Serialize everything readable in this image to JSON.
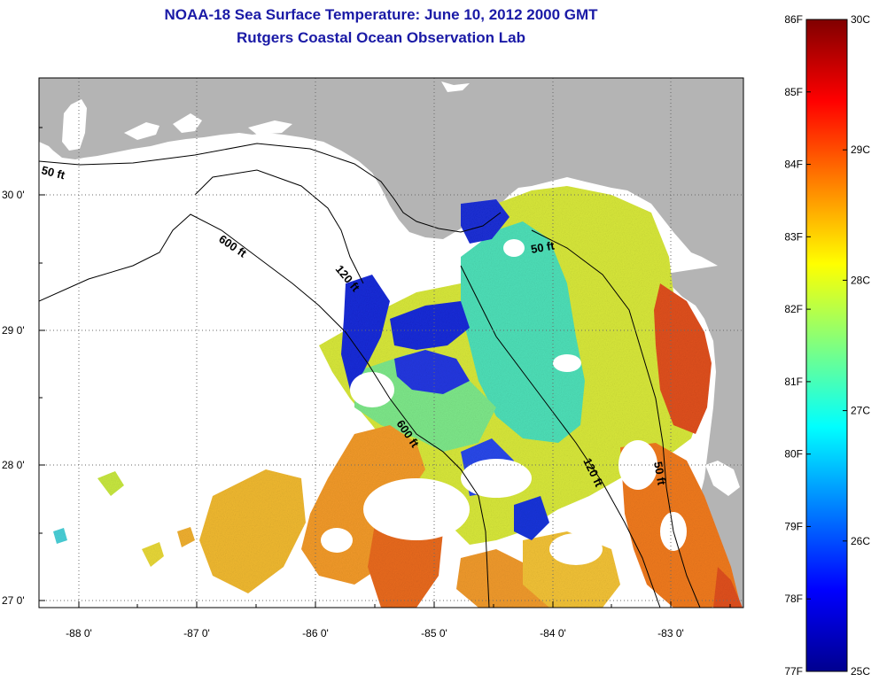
{
  "title": "NOAA-18 Sea Surface Temperature:  June 10, 2012 2000 GMT",
  "subtitle": "Rutgers Coastal Ocean Observation Lab",
  "map": {
    "lon_labels": [
      "-88 0'",
      "-87 0'",
      "-86 0'",
      "-85 0'",
      "-84 0'",
      "-83 0'"
    ],
    "lat_labels": [
      "30 0'",
      "29 0'",
      "28 0'",
      "27 0'"
    ],
    "contour_labels": [
      "50 ft",
      "600 ft",
      "120 ft",
      "50 ft",
      "600 ft",
      "120 ft",
      "50 ft"
    ],
    "colors": {
      "land": "#b4b4b4",
      "no_data": "#ffffff",
      "grid": "#555555"
    }
  },
  "colorbar": {
    "fahrenheit_labels": [
      "86F",
      "85F",
      "84F",
      "83F",
      "82F",
      "81F",
      "80F",
      "79F",
      "78F",
      "77F"
    ],
    "celsius_labels": [
      "30C",
      "29C",
      "28C",
      "27C",
      "26C",
      "25C"
    ],
    "fahrenheit_values": [
      86,
      85,
      84,
      83,
      82,
      81,
      80,
      79,
      78,
      77
    ],
    "celsius_values": [
      30,
      29,
      28,
      27,
      26,
      25
    ],
    "range_f": [
      77,
      86
    ],
    "range_c": [
      25,
      30
    ],
    "colormap": [
      "#00008f",
      "#0000ff",
      "#00ffff",
      "#ffff00",
      "#ff0000",
      "#800000"
    ]
  }
}
